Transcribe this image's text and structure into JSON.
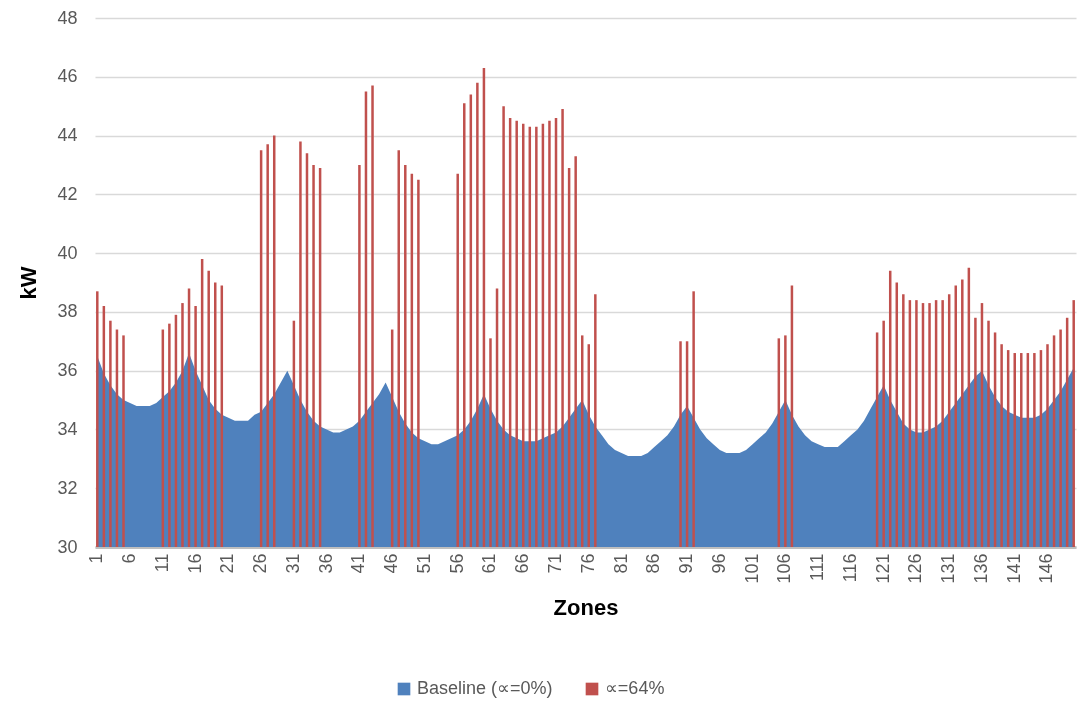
{
  "chart_data": {
    "type": "bar",
    "xlabel": "Zones",
    "ylabel": "kW",
    "categories": [
      "1",
      null,
      null,
      null,
      null,
      "6",
      null,
      null,
      null,
      null,
      "11",
      null,
      null,
      null,
      null,
      "16",
      null,
      null,
      null,
      null,
      "21",
      null,
      null,
      null,
      null,
      "26",
      null,
      null,
      null,
      null,
      "31",
      null,
      null,
      null,
      null,
      "36",
      null,
      null,
      null,
      null,
      "41",
      null,
      null,
      null,
      null,
      "46",
      null,
      null,
      null,
      null,
      "51",
      null,
      null,
      null,
      null,
      "56",
      null,
      null,
      null,
      null,
      "61",
      null,
      null,
      null,
      null,
      "66",
      null,
      null,
      null,
      null,
      "71",
      null,
      null,
      null,
      null,
      "76",
      null,
      null,
      null,
      null,
      "81",
      null,
      null,
      null,
      null,
      "86",
      null,
      null,
      null,
      null,
      "91",
      null,
      null,
      null,
      null,
      "96",
      null,
      null,
      null,
      null,
      "101",
      null,
      null,
      null,
      null,
      "106",
      null,
      null,
      null,
      null,
      "111",
      null,
      null,
      null,
      null,
      "116",
      null,
      null,
      null,
      null,
      "121",
      null,
      null,
      null,
      null,
      "126",
      null,
      null,
      null,
      null,
      "131",
      null,
      null,
      null,
      null,
      "136",
      null,
      null,
      null,
      null,
      "141",
      null,
      null,
      null,
      null,
      "146",
      null,
      null,
      null,
      null
    ],
    "series": [
      {
        "name": "Baseline (∝=0%)",
        "type": "area",
        "color": "#4f81bd",
        "values": [
          36.5,
          35.9,
          35.5,
          35.2,
          35.0,
          34.9,
          34.8,
          34.8,
          34.8,
          34.9,
          35.1,
          35.3,
          35.6,
          36.0,
          36.6,
          36.0,
          35.5,
          35.0,
          34.7,
          34.5,
          34.4,
          34.3,
          34.3,
          34.3,
          34.5,
          34.6,
          34.9,
          35.2,
          35.6,
          36.0,
          35.5,
          35.0,
          34.6,
          34.3,
          34.1,
          34.0,
          33.9,
          33.9,
          34.0,
          34.1,
          34.3,
          34.6,
          34.9,
          35.2,
          35.6,
          35.1,
          34.6,
          34.2,
          33.9,
          33.7,
          33.6,
          33.5,
          33.5,
          33.6,
          33.7,
          33.8,
          34.0,
          34.3,
          34.7,
          35.2,
          34.7,
          34.3,
          34.0,
          33.8,
          33.7,
          33.6,
          33.6,
          33.6,
          33.7,
          33.8,
          33.9,
          34.1,
          34.4,
          34.7,
          35.0,
          34.5,
          34.1,
          33.8,
          33.5,
          33.3,
          33.2,
          33.1,
          33.1,
          33.1,
          33.2,
          33.4,
          33.6,
          33.8,
          34.1,
          34.5,
          34.8,
          34.4,
          34.0,
          33.7,
          33.5,
          33.3,
          33.2,
          33.2,
          33.2,
          33.3,
          33.5,
          33.7,
          33.9,
          34.2,
          34.6,
          35.0,
          34.5,
          34.1,
          33.8,
          33.6,
          33.5,
          33.4,
          33.4,
          33.4,
          33.6,
          33.8,
          34.0,
          34.3,
          34.7,
          35.1,
          35.5,
          35.0,
          34.6,
          34.2,
          34.0,
          33.9,
          33.9,
          34.0,
          34.1,
          34.3,
          34.6,
          34.9,
          35.2,
          35.5,
          35.8,
          36.0,
          35.5,
          35.1,
          34.8,
          34.6,
          34.5,
          34.4,
          34.4,
          34.4,
          34.5,
          34.7,
          35.0,
          35.3,
          35.7,
          36.1
        ]
      },
      {
        "name": "∝=64%",
        "color": "#c0504d",
        "values": [
          38.7,
          38.2,
          37.7,
          37.4,
          37.2,
          null,
          null,
          null,
          null,
          null,
          37.4,
          37.6,
          37.9,
          38.3,
          38.8,
          38.2,
          39.8,
          39.4,
          39.0,
          38.9,
          null,
          null,
          null,
          null,
          null,
          43.5,
          43.7,
          44.0,
          null,
          null,
          37.7,
          43.8,
          43.4,
          43.0,
          42.9,
          null,
          null,
          null,
          null,
          null,
          43.0,
          45.5,
          45.7,
          null,
          null,
          37.4,
          43.5,
          43.0,
          42.7,
          42.5,
          null,
          null,
          null,
          null,
          null,
          42.7,
          45.1,
          45.4,
          45.8,
          46.3,
          37.1,
          38.8,
          45.0,
          44.6,
          44.5,
          44.4,
          44.3,
          44.3,
          44.4,
          44.5,
          44.6,
          44.9,
          42.9,
          43.3,
          37.2,
          36.9,
          38.6,
          null,
          null,
          null,
          null,
          null,
          null,
          null,
          null,
          null,
          null,
          null,
          null,
          37.0,
          37.0,
          38.7,
          null,
          null,
          null,
          null,
          null,
          null,
          null,
          null,
          null,
          null,
          null,
          null,
          37.1,
          37.2,
          38.9,
          null,
          null,
          null,
          null,
          null,
          null,
          null,
          null,
          null,
          null,
          null,
          null,
          37.3,
          37.7,
          39.4,
          39.0,
          38.6,
          38.4,
          38.4,
          38.3,
          38.3,
          38.4,
          38.4,
          38.6,
          38.9,
          39.1,
          39.5,
          37.8,
          38.3,
          37.7,
          37.3,
          36.9,
          36.7,
          36.6,
          36.6,
          36.6,
          36.6,
          36.7,
          36.9,
          37.2,
          37.4,
          37.8,
          38.4
        ]
      }
    ],
    "ylim": [
      30,
      48
    ],
    "yticks": [
      30,
      32,
      34,
      36,
      38,
      40,
      42,
      44,
      46,
      48
    ],
    "grid": "y",
    "legend": "bottom"
  }
}
